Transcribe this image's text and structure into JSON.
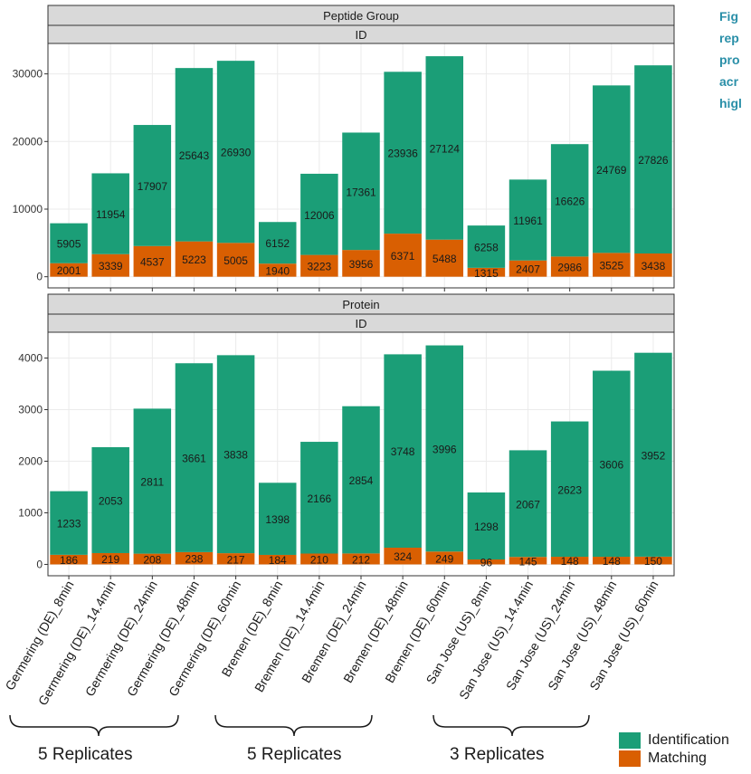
{
  "side_caption": [
    "Fig",
    "rep",
    "pro",
    "acr",
    "higl"
  ],
  "strip_labels": {
    "top_outer": "Peptide Group",
    "top_inner": "ID",
    "bottom_outer": "Protein",
    "bottom_inner": "ID"
  },
  "group_labels": [
    "5 Replicates",
    "5 Replicates",
    "3 Replicates"
  ],
  "colors": {
    "identification": "#1b9e77",
    "matching": "#d95f02",
    "strip": "#d9d9d9",
    "grid": "#ebebeb"
  },
  "legend": {
    "identification": "Identification",
    "matching": "Matching"
  },
  "chart_data": [
    {
      "type": "bar",
      "stacked": true,
      "title": "Peptide Group",
      "subtitle": "ID",
      "categories": [
        "Germering (DE)_8min",
        "Germering (DE)_14.4min",
        "Germering (DE)_24min",
        "Germering (DE)_48min",
        "Germering (DE)_60min",
        "Bremen (DE)_8min",
        "Bremen (DE)_14.4min",
        "Bremen (DE)_24min",
        "Bremen (DE)_48min",
        "Bremen (DE)_60min",
        "San Jose (US)_8min",
        "San Jose (US)_14.4min",
        "San Jose (US)_24min",
        "San Jose (US)_48min",
        "San Jose (US)_60min"
      ],
      "series": [
        {
          "name": "Matching",
          "values": [
            2001,
            3339,
            4537,
            5223,
            5005,
            1940,
            3223,
            3956,
            6371,
            5488,
            1315,
            2407,
            2986,
            3525,
            3438
          ]
        },
        {
          "name": "Identification",
          "values": [
            5905,
            11954,
            17907,
            25643,
            26930,
            6152,
            12006,
            17361,
            23936,
            27124,
            6258,
            11961,
            16626,
            24769,
            27826
          ]
        }
      ],
      "yticks": [
        0,
        10000,
        20000,
        30000
      ],
      "ylim": [
        -1650,
        34500
      ],
      "grid": true
    },
    {
      "type": "bar",
      "stacked": true,
      "title": "Protein",
      "subtitle": "ID",
      "categories": [
        "Germering (DE)_8min",
        "Germering (DE)_14.4min",
        "Germering (DE)_24min",
        "Germering (DE)_48min",
        "Germering (DE)_60min",
        "Bremen (DE)_8min",
        "Bremen (DE)_14.4min",
        "Bremen (DE)_24min",
        "Bremen (DE)_48min",
        "Bremen (DE)_60min",
        "San Jose (US)_8min",
        "San Jose (US)_14.4min",
        "San Jose (US)_24min",
        "San Jose (US)_48min",
        "San Jose (US)_60min"
      ],
      "series": [
        {
          "name": "Matching",
          "values": [
            186,
            219,
            208,
            238,
            217,
            184,
            210,
            212,
            324,
            249,
            96,
            145,
            148,
            148,
            150
          ]
        },
        {
          "name": "Identification",
          "values": [
            1233,
            2053,
            2811,
            3661,
            3838,
            1398,
            2166,
            2854,
            3748,
            3996,
            1298,
            2067,
            2623,
            3606,
            3952
          ]
        }
      ],
      "yticks": [
        0,
        1000,
        2000,
        3000,
        4000
      ],
      "ylim": [
        -220,
        4500
      ],
      "grid": true
    }
  ]
}
